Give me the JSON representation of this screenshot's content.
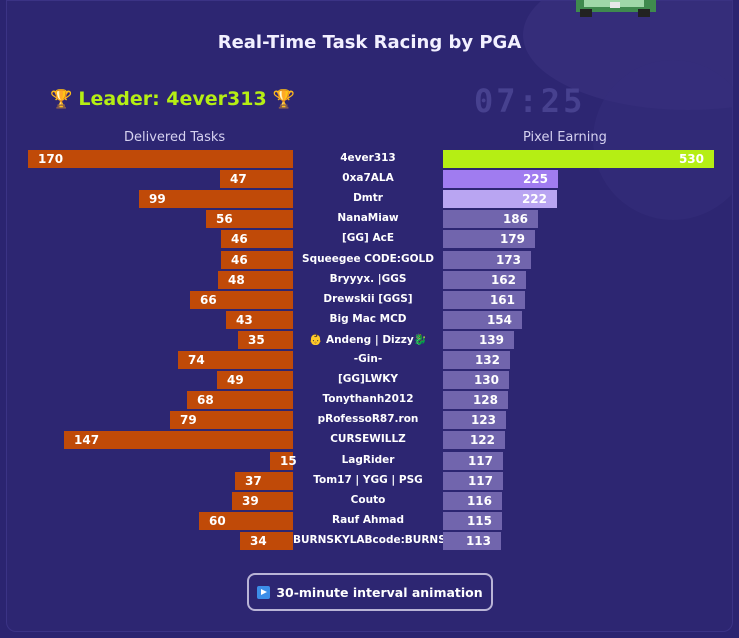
{
  "title": "Real-Time Task Racing by PGA",
  "leader": {
    "text": "Leader: 4ever313",
    "trophy_icon": "trophy-icon"
  },
  "timer": "07:25",
  "button": {
    "label": "30-minute interval animation",
    "icon": "play-icon"
  },
  "colors": {
    "delivered_bar": "#c04a08",
    "pixel_first": "#b5ee14",
    "pixel_second": "#a07cf0",
    "pixel_third": "#b9a5f2",
    "pixel_other": "#7165ad"
  },
  "chart_data": {
    "type": "bar",
    "left_header": "Delivered Tasks",
    "right_header": "Pixel Earning",
    "categories": [
      "4ever313",
      "0xa7ALA",
      "Dmtr",
      "NanaMiaw",
      "[GG] AcE",
      "Squeegee CODE:GOLD",
      "Bryyyx. |GGS",
      "Drewskii [GGS]",
      "Big Mac MCD",
      "👶 Andeng | Dizzy🐉",
      "-Gin-",
      "[GG]LWKY",
      "Tonythanh2012",
      "pRofessoR87.ron",
      "CURSEWILLZ",
      "LagRider",
      "Tom17 | YGG | PSG",
      "Couto",
      "Rauf Ahmad",
      "BURNSKYLABcode:BURNS"
    ],
    "series": [
      {
        "name": "Delivered Tasks",
        "values": [
          170,
          47,
          99,
          56,
          46,
          46,
          48,
          66,
          43,
          35,
          74,
          49,
          68,
          79,
          147,
          15,
          37,
          39,
          60,
          34
        ]
      },
      {
        "name": "Pixel Earning",
        "values": [
          530,
          225,
          222,
          186,
          179,
          173,
          162,
          161,
          154,
          139,
          132,
          130,
          128,
          123,
          122,
          117,
          117,
          116,
          115,
          113
        ]
      }
    ]
  }
}
